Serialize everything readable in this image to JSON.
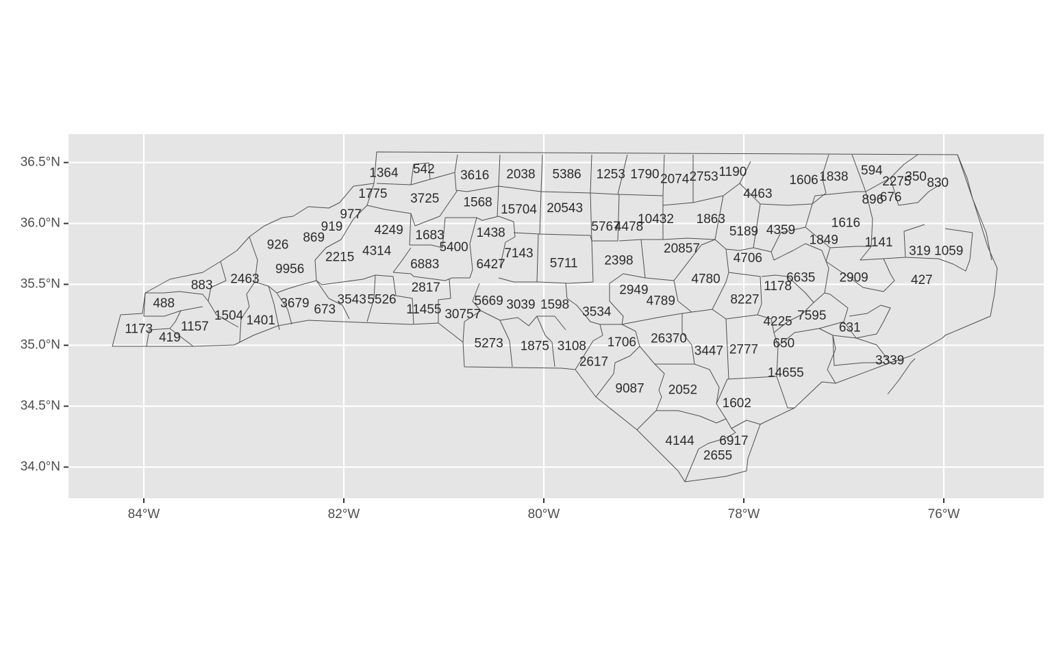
{
  "map": {
    "region": "North Carolina counties",
    "panel_background": "#e5e5e5",
    "border_color": "#4d4d4d",
    "grid": true,
    "x_axis": {
      "ticks": [
        {
          "lon": -84,
          "label": "84°W"
        },
        {
          "lon": -82,
          "label": "82°W"
        },
        {
          "lon": -80,
          "label": "80°W"
        },
        {
          "lon": -78,
          "label": "78°W"
        },
        {
          "lon": -76,
          "label": "76°W"
        }
      ]
    },
    "y_axis": {
      "ticks": [
        {
          "lat": 36.5,
          "label": "36.5°N"
        },
        {
          "lat": 36.0,
          "label": "36.0°N"
        },
        {
          "lat": 35.5,
          "label": "35.5°N"
        },
        {
          "lat": 35.0,
          "label": "35.0°N"
        },
        {
          "lat": 34.5,
          "label": "34.5°N"
        },
        {
          "lat": 34.0,
          "label": "34.0°N"
        }
      ]
    },
    "counties": [
      {
        "label": "1364",
        "lon": -81.6,
        "lat": 36.41
      },
      {
        "label": "542",
        "lon": -81.2,
        "lat": 36.44
      },
      {
        "label": "3616",
        "lon": -80.69,
        "lat": 36.39
      },
      {
        "label": "2038",
        "lon": -80.23,
        "lat": 36.4
      },
      {
        "label": "5386",
        "lon": -79.77,
        "lat": 36.4
      },
      {
        "label": "1253",
        "lon": -79.33,
        "lat": 36.4
      },
      {
        "label": "1790",
        "lon": -78.99,
        "lat": 36.4
      },
      {
        "label": "2074",
        "lon": -78.69,
        "lat": 36.36
      },
      {
        "label": "2753",
        "lon": -78.4,
        "lat": 36.38
      },
      {
        "label": "1190",
        "lon": -78.11,
        "lat": 36.42
      },
      {
        "label": "1606",
        "lon": -77.4,
        "lat": 36.35
      },
      {
        "label": "1838",
        "lon": -77.1,
        "lat": 36.38
      },
      {
        "label": "594",
        "lon": -76.72,
        "lat": 36.43
      },
      {
        "label": "350",
        "lon": -76.28,
        "lat": 36.38
      },
      {
        "label": "2275",
        "lon": -76.47,
        "lat": 36.34
      },
      {
        "label": "830",
        "lon": -76.06,
        "lat": 36.33
      },
      {
        "label": "1775",
        "lon": -81.71,
        "lat": 36.24
      },
      {
        "label": "3725",
        "lon": -81.19,
        "lat": 36.2
      },
      {
        "label": "4463",
        "lon": -77.86,
        "lat": 36.24
      },
      {
        "label": "896",
        "lon": -76.71,
        "lat": 36.19
      },
      {
        "label": "676",
        "lon": -76.53,
        "lat": 36.21
      },
      {
        "label": "1568",
        "lon": -80.66,
        "lat": 36.17
      },
      {
        "label": "15704",
        "lon": -80.25,
        "lat": 36.11
      },
      {
        "label": "20543",
        "lon": -79.79,
        "lat": 36.12
      },
      {
        "label": "977",
        "lon": -81.93,
        "lat": 36.07
      },
      {
        "label": "919",
        "lon": -82.12,
        "lat": 35.97
      },
      {
        "label": "4249",
        "lon": -81.55,
        "lat": 35.94
      },
      {
        "label": "1683",
        "lon": -81.14,
        "lat": 35.9
      },
      {
        "label": "5767",
        "lon": -79.38,
        "lat": 35.97
      },
      {
        "label": "4478",
        "lon": -79.15,
        "lat": 35.97
      },
      {
        "label": "10432",
        "lon": -78.88,
        "lat": 36.03
      },
      {
        "label": "1863",
        "lon": -78.33,
        "lat": 36.03
      },
      {
        "label": "5189",
        "lon": -78.0,
        "lat": 35.93
      },
      {
        "label": "4359",
        "lon": -77.63,
        "lat": 35.94
      },
      {
        "label": "1616",
        "lon": -76.98,
        "lat": 36.0
      },
      {
        "label": "1438",
        "lon": -80.53,
        "lat": 35.92
      },
      {
        "label": "926",
        "lon": -82.66,
        "lat": 35.82
      },
      {
        "label": "869",
        "lon": -82.3,
        "lat": 35.88
      },
      {
        "label": "5400",
        "lon": -80.9,
        "lat": 35.8
      },
      {
        "label": "1849",
        "lon": -77.2,
        "lat": 35.86
      },
      {
        "label": "1141",
        "lon": -76.65,
        "lat": 35.84
      },
      {
        "label": "4314",
        "lon": -81.67,
        "lat": 35.77
      },
      {
        "label": "7143",
        "lon": -80.25,
        "lat": 35.75
      },
      {
        "label": "319",
        "lon": -76.24,
        "lat": 35.77
      },
      {
        "label": "1059",
        "lon": -75.95,
        "lat": 35.77
      },
      {
        "label": "2215",
        "lon": -82.04,
        "lat": 35.72
      },
      {
        "label": "20857",
        "lon": -78.62,
        "lat": 35.79
      },
      {
        "label": "4706",
        "lon": -77.96,
        "lat": 35.71
      },
      {
        "label": "6883",
        "lon": -81.19,
        "lat": 35.66
      },
      {
        "label": "6427",
        "lon": -80.53,
        "lat": 35.66
      },
      {
        "label": "5711",
        "lon": -79.8,
        "lat": 35.67
      },
      {
        "label": "2398",
        "lon": -79.25,
        "lat": 35.69
      },
      {
        "label": "9956",
        "lon": -82.54,
        "lat": 35.62
      },
      {
        "label": "2463",
        "lon": -82.99,
        "lat": 35.54
      },
      {
        "label": "883",
        "lon": -83.42,
        "lat": 35.49
      },
      {
        "label": "4780",
        "lon": -78.38,
        "lat": 35.54
      },
      {
        "label": "6635",
        "lon": -77.43,
        "lat": 35.55
      },
      {
        "label": "2909",
        "lon": -76.9,
        "lat": 35.55
      },
      {
        "label": "427",
        "lon": -76.22,
        "lat": 35.53
      },
      {
        "label": "1178",
        "lon": -77.66,
        "lat": 35.48
      },
      {
        "label": "2817",
        "lon": -81.18,
        "lat": 35.47
      },
      {
        "label": "2949",
        "lon": -79.1,
        "lat": 35.45
      },
      {
        "label": "3543",
        "lon": -81.92,
        "lat": 35.37
      },
      {
        "label": "5526",
        "lon": -81.62,
        "lat": 35.37
      },
      {
        "label": "3679",
        "lon": -82.49,
        "lat": 35.34
      },
      {
        "label": "5669",
        "lon": -80.55,
        "lat": 35.36
      },
      {
        "label": "4789",
        "lon": -78.83,
        "lat": 35.36
      },
      {
        "label": "8227",
        "lon": -77.99,
        "lat": 35.37
      },
      {
        "label": "488",
        "lon": -83.8,
        "lat": 35.34
      },
      {
        "label": "3039",
        "lon": -80.23,
        "lat": 35.33
      },
      {
        "label": "1598",
        "lon": -79.89,
        "lat": 35.33
      },
      {
        "label": "673",
        "lon": -82.19,
        "lat": 35.29
      },
      {
        "label": "11455",
        "lon": -81.2,
        "lat": 35.29
      },
      {
        "label": "30757",
        "lon": -80.81,
        "lat": 35.25
      },
      {
        "label": "3534",
        "lon": -79.47,
        "lat": 35.27
      },
      {
        "label": "7595",
        "lon": -77.32,
        "lat": 35.24
      },
      {
        "label": "1504",
        "lon": -83.15,
        "lat": 35.24
      },
      {
        "label": "1401",
        "lon": -82.83,
        "lat": 35.2
      },
      {
        "label": "4225",
        "lon": -77.66,
        "lat": 35.19
      },
      {
        "label": "1157",
        "lon": -83.49,
        "lat": 35.15
      },
      {
        "label": "631",
        "lon": -76.94,
        "lat": 35.14
      },
      {
        "label": "1173",
        "lon": -84.05,
        "lat": 35.13
      },
      {
        "label": "419",
        "lon": -83.74,
        "lat": 35.06
      },
      {
        "label": "26370",
        "lon": -78.75,
        "lat": 35.05
      },
      {
        "label": "5273",
        "lon": -80.55,
        "lat": 35.01
      },
      {
        "label": "1706",
        "lon": -79.22,
        "lat": 35.02
      },
      {
        "label": "650",
        "lon": -77.6,
        "lat": 35.01
      },
      {
        "label": "1875",
        "lon": -80.09,
        "lat": 34.99
      },
      {
        "label": "3108",
        "lon": -79.72,
        "lat": 34.99
      },
      {
        "label": "2777",
        "lon": -78.0,
        "lat": 34.96
      },
      {
        "label": "3447",
        "lon": -78.35,
        "lat": 34.95
      },
      {
        "label": "3339",
        "lon": -76.54,
        "lat": 34.87
      },
      {
        "label": "2617",
        "lon": -79.5,
        "lat": 34.86
      },
      {
        "label": "14655",
        "lon": -77.58,
        "lat": 34.77
      },
      {
        "label": "9087",
        "lon": -79.14,
        "lat": 34.64
      },
      {
        "label": "2052",
        "lon": -78.61,
        "lat": 34.63
      },
      {
        "label": "1602",
        "lon": -78.07,
        "lat": 34.52
      },
      {
        "label": "4144",
        "lon": -78.64,
        "lat": 34.21
      },
      {
        "label": "6917",
        "lon": -78.1,
        "lat": 34.21
      },
      {
        "label": "2655",
        "lon": -78.26,
        "lat": 34.09
      }
    ]
  }
}
